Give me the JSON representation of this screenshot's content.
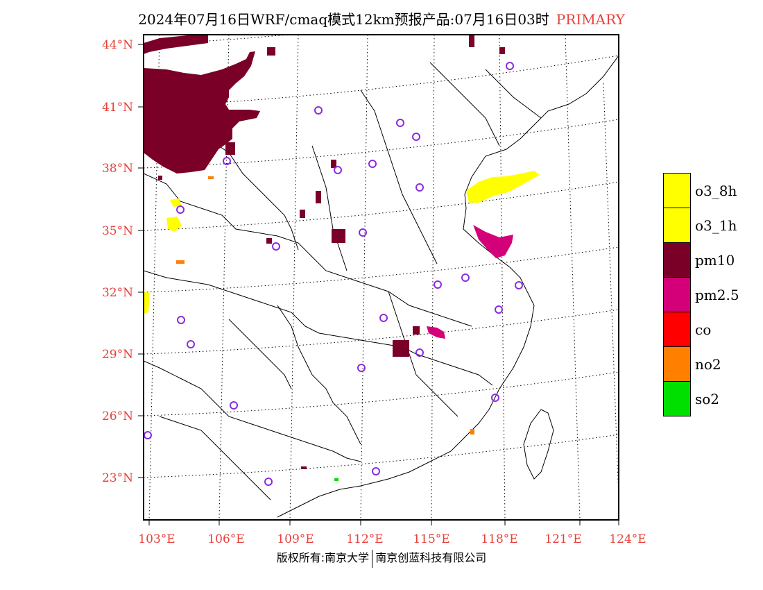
{
  "header": {
    "title": "2024年07月16日WRF/cmaq模式12km预报产品:07月16日03时",
    "run_tag": "PRIMARY"
  },
  "colors": {
    "label_red": "#e8403a",
    "o3_8h": "#ffff00",
    "o3_1h": "#ffff00",
    "pm10": "#7a0028",
    "pm25": "#d4007a",
    "co": "#ff0000",
    "no2": "#ff8000",
    "so2": "#00e000",
    "station": "#8a2be2"
  },
  "map": {
    "lat_labels": [
      "44°N",
      "41°N",
      "38°N",
      "35°N",
      "32°N",
      "29°N",
      "26°N",
      "23°N"
    ],
    "lon_labels": [
      "103°E",
      "106°E",
      "109°E",
      "112°E",
      "115°E",
      "118°E",
      "121°E",
      "124°E"
    ]
  },
  "legend": [
    {
      "label": "o3_8h",
      "color": "#ffff00"
    },
    {
      "label": "o3_1h",
      "color": "#ffff00"
    },
    {
      "label": "pm10",
      "color": "#7a0028"
    },
    {
      "label": "pm2.5",
      "color": "#d4007a"
    },
    {
      "label": "co",
      "color": "#ff0000"
    },
    {
      "label": "no2",
      "color": "#ff8000"
    },
    {
      "label": "so2",
      "color": "#00e000"
    }
  ],
  "footer": {
    "left": "版权所有:南京大学",
    "right": "南京创蓝科技有限公司"
  }
}
